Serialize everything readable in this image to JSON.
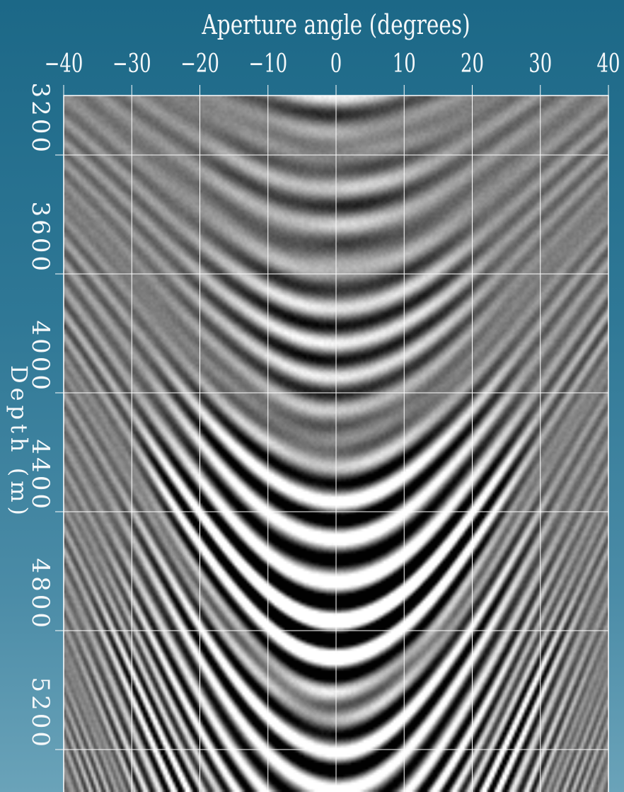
{
  "chart_data": {
    "type": "heatmap",
    "title": "",
    "xlabel": "Aperture angle (degrees)",
    "ylabel": "Depth (m)",
    "xlim": [
      -40,
      40
    ],
    "ylim": [
      3000,
      5330
    ],
    "x_ticks": [
      -40,
      -30,
      -20,
      -10,
      0,
      10,
      20,
      30,
      40
    ],
    "x_tick_labels": [
      "−40",
      "−30",
      "−20",
      "−10",
      "0",
      "10",
      "20",
      "30",
      "40"
    ],
    "y_ticks": [
      3200,
      3600,
      4000,
      4400,
      4800,
      5200
    ],
    "y_tick_labels": [
      "3200",
      "3600",
      "4000",
      "4400",
      "4800",
      "5200"
    ],
    "grid": true,
    "colormap": "grayscale",
    "axis_position": "top",
    "colors": {
      "grid": "#ffffff",
      "text": "#f4f8fa",
      "background_top": "#1c6887",
      "background_bottom": "#6aa3b9"
    }
  }
}
